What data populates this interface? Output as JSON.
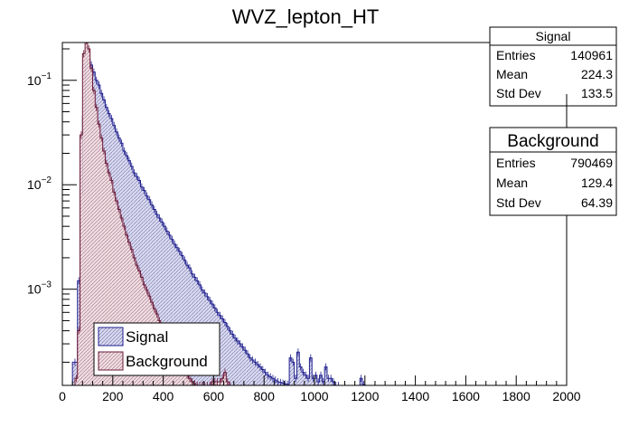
{
  "chart_data": {
    "type": "histogram",
    "title": "WVZ_lepton_HT",
    "xlabel": "",
    "ylabel": "",
    "xlim": [
      0,
      2000
    ],
    "ylim": [
      0.00012,
      0.23
    ],
    "y_scale": "log",
    "grid": false,
    "x_ticks": [
      0,
      200,
      400,
      600,
      800,
      1000,
      1200,
      1400,
      1600,
      1800,
      2000
    ],
    "y_ticks": [
      {
        "value": 0.1,
        "label": "10",
        "exp": "−1"
      },
      {
        "value": 0.01,
        "label": "10",
        "exp": "−2"
      },
      {
        "value": 0.001,
        "label": "10",
        "exp": "−3"
      }
    ],
    "legend_position": "bottom-left",
    "series": [
      {
        "name": "Signal",
        "color": "#1f1f8f",
        "fill": "#c8c8e8",
        "bins": [
          [
            40,
            60,
            0.0002
          ],
          [
            60,
            70,
            0.0012
          ],
          [
            70,
            80,
            0.008
          ],
          [
            80,
            90,
            0.045
          ],
          [
            90,
            100,
            0.14
          ],
          [
            100,
            110,
            0.16
          ],
          [
            110,
            120,
            0.14
          ],
          [
            120,
            130,
            0.12
          ],
          [
            130,
            140,
            0.1
          ],
          [
            140,
            150,
            0.09
          ],
          [
            150,
            160,
            0.075
          ],
          [
            160,
            170,
            0.065
          ],
          [
            170,
            180,
            0.055
          ],
          [
            180,
            190,
            0.048
          ],
          [
            190,
            200,
            0.043
          ],
          [
            200,
            210,
            0.037
          ],
          [
            210,
            220,
            0.032
          ],
          [
            220,
            230,
            0.028
          ],
          [
            230,
            240,
            0.025
          ],
          [
            240,
            250,
            0.021
          ],
          [
            250,
            260,
            0.019
          ],
          [
            260,
            270,
            0.017
          ],
          [
            270,
            280,
            0.015
          ],
          [
            280,
            290,
            0.013
          ],
          [
            290,
            300,
            0.012
          ],
          [
            300,
            310,
            0.011
          ],
          [
            310,
            320,
            0.0095
          ],
          [
            320,
            330,
            0.0088
          ],
          [
            330,
            340,
            0.0078
          ],
          [
            340,
            350,
            0.0072
          ],
          [
            350,
            360,
            0.0064
          ],
          [
            360,
            370,
            0.0058
          ],
          [
            370,
            380,
            0.0052
          ],
          [
            380,
            390,
            0.0048
          ],
          [
            390,
            400,
            0.0044
          ],
          [
            400,
            410,
            0.004
          ],
          [
            410,
            420,
            0.0036
          ],
          [
            420,
            430,
            0.0033
          ],
          [
            430,
            440,
            0.003
          ],
          [
            440,
            450,
            0.0027
          ],
          [
            450,
            460,
            0.0025
          ],
          [
            460,
            470,
            0.0023
          ],
          [
            470,
            480,
            0.0021
          ],
          [
            480,
            490,
            0.0019
          ],
          [
            490,
            500,
            0.0017
          ],
          [
            500,
            510,
            0.0016
          ],
          [
            510,
            520,
            0.0014
          ],
          [
            520,
            530,
            0.0013
          ],
          [
            530,
            540,
            0.0012
          ],
          [
            540,
            550,
            0.0011
          ],
          [
            550,
            560,
            0.00098
          ],
          [
            560,
            570,
            0.00092
          ],
          [
            570,
            580,
            0.00085
          ],
          [
            580,
            590,
            0.00078
          ],
          [
            590,
            600,
            0.00072
          ],
          [
            600,
            610,
            0.00066
          ],
          [
            610,
            620,
            0.0006
          ],
          [
            620,
            630,
            0.00056
          ],
          [
            630,
            640,
            0.00052
          ],
          [
            640,
            650,
            0.00048
          ],
          [
            650,
            660,
            0.00044
          ],
          [
            660,
            670,
            0.0004
          ],
          [
            670,
            680,
            0.00037
          ],
          [
            680,
            690,
            0.00034
          ],
          [
            690,
            700,
            0.00032
          ],
          [
            700,
            710,
            0.0003
          ],
          [
            710,
            720,
            0.00028
          ],
          [
            720,
            730,
            0.00026
          ],
          [
            730,
            740,
            0.00024
          ],
          [
            740,
            750,
            0.00022
          ],
          [
            750,
            760,
            0.00021
          ],
          [
            760,
            770,
            0.0002
          ],
          [
            770,
            780,
            0.00019
          ],
          [
            780,
            790,
            0.00018
          ],
          [
            790,
            800,
            0.00017
          ],
          [
            800,
            810,
            0.00016
          ],
          [
            810,
            820,
            0.00015
          ],
          [
            820,
            830,
            0.000145
          ],
          [
            830,
            840,
            0.00014
          ],
          [
            840,
            850,
            0.000135
          ],
          [
            850,
            860,
            0.00013
          ],
          [
            860,
            870,
            0.000128
          ],
          [
            870,
            880,
            0.000126
          ],
          [
            880,
            890,
            0.000124
          ],
          [
            890,
            900,
            0.000123
          ],
          [
            900,
            910,
            0.00022
          ],
          [
            910,
            920,
            0.0002
          ],
          [
            920,
            930,
            0.00014
          ],
          [
            930,
            940,
            0.00025
          ],
          [
            940,
            950,
            0.00018
          ],
          [
            950,
            960,
            0.00016
          ],
          [
            960,
            970,
            0.00015
          ],
          [
            970,
            980,
            0.00014
          ],
          [
            980,
            990,
            0.00022
          ],
          [
            990,
            1000,
            0.00014
          ],
          [
            1000,
            1010,
            0.00015
          ],
          [
            1010,
            1020,
            0.00013
          ],
          [
            1020,
            1030,
            0.00015
          ],
          [
            1030,
            1040,
            0.00013
          ],
          [
            1040,
            1050,
            0.00018
          ],
          [
            1050,
            1060,
            0.00014
          ],
          [
            1060,
            1070,
            0.00014
          ],
          [
            1070,
            1080,
            0.00013
          ],
          [
            1080,
            1090,
            0.00012
          ],
          [
            1090,
            1100,
            0.00012
          ],
          [
            1180,
            1190,
            0.00014
          ],
          [
            1190,
            1200,
            0.000122
          ]
        ]
      },
      {
        "name": "Background",
        "color": "#6b1a3a",
        "fill": "#e8cfd6",
        "bins": [
          [
            50,
            60,
            0.00014
          ],
          [
            60,
            70,
            0.0004
          ],
          [
            70,
            80,
            0.03
          ],
          [
            80,
            90,
            0.18
          ],
          [
            90,
            100,
            0.24
          ],
          [
            100,
            110,
            0.2
          ],
          [
            110,
            120,
            0.13
          ],
          [
            120,
            130,
            0.08
          ],
          [
            130,
            140,
            0.055
          ],
          [
            140,
            150,
            0.038
          ],
          [
            150,
            160,
            0.028
          ],
          [
            160,
            170,
            0.021
          ],
          [
            170,
            180,
            0.016
          ],
          [
            180,
            190,
            0.013
          ],
          [
            190,
            200,
            0.011
          ],
          [
            200,
            210,
            0.0085
          ],
          [
            210,
            220,
            0.007
          ],
          [
            220,
            230,
            0.0058
          ],
          [
            230,
            240,
            0.0048
          ],
          [
            240,
            250,
            0.004
          ],
          [
            250,
            260,
            0.0033
          ],
          [
            260,
            270,
            0.0028
          ],
          [
            270,
            280,
            0.0024
          ],
          [
            280,
            290,
            0.002
          ],
          [
            290,
            300,
            0.0017
          ],
          [
            300,
            310,
            0.0015
          ],
          [
            310,
            320,
            0.0013
          ],
          [
            320,
            330,
            0.0011
          ],
          [
            330,
            340,
            0.00098
          ],
          [
            340,
            350,
            0.00086
          ],
          [
            350,
            360,
            0.00075
          ],
          [
            360,
            370,
            0.00065
          ],
          [
            370,
            380,
            0.00058
          ],
          [
            380,
            390,
            0.0005
          ],
          [
            390,
            400,
            0.00044
          ],
          [
            400,
            410,
            0.0004
          ],
          [
            410,
            420,
            0.00035
          ],
          [
            420,
            430,
            0.00031
          ],
          [
            430,
            440,
            0.00028
          ],
          [
            440,
            450,
            0.00025
          ],
          [
            450,
            460,
            0.00022
          ],
          [
            460,
            470,
            0.0002
          ],
          [
            470,
            480,
            0.00018
          ],
          [
            480,
            490,
            0.00016
          ],
          [
            490,
            500,
            0.00015
          ],
          [
            500,
            510,
            0.00014
          ],
          [
            510,
            520,
            0.00013
          ],
          [
            520,
            530,
            0.000125
          ],
          [
            530,
            540,
            0.00012
          ],
          [
            540,
            550,
            0.00012
          ],
          [
            550,
            560,
            0.00012
          ],
          [
            560,
            570,
            0.00012
          ],
          [
            570,
            580,
            0.00012
          ],
          [
            580,
            590,
            0.00012
          ],
          [
            590,
            600,
            0.00013
          ],
          [
            600,
            610,
            0.00013
          ],
          [
            610,
            620,
            0.00013
          ],
          [
            620,
            630,
            0.00013
          ],
          [
            630,
            640,
            0.00014
          ],
          [
            640,
            650,
            0.00016
          ],
          [
            650,
            660,
            0.00013
          ],
          [
            660,
            670,
            0.00012
          ]
        ]
      }
    ],
    "stats_boxes": [
      {
        "title": "Signal",
        "entries_label": "Entries",
        "entries": "140961",
        "mean_label": "Mean",
        "mean": "224.3",
        "std_label": "Std Dev",
        "std": "133.5"
      },
      {
        "title": "Background",
        "entries_label": "Entries",
        "entries": "790469",
        "mean_label": "Mean",
        "mean": "129.4",
        "std_label": "Std Dev",
        "std": "64.39"
      }
    ],
    "legend": [
      {
        "label": "Signal",
        "fill": "#c8c8e8",
        "stroke": "#1f1f8f"
      },
      {
        "label": "Background",
        "fill": "#e8cfd6",
        "stroke": "#6b1a3a"
      }
    ]
  }
}
